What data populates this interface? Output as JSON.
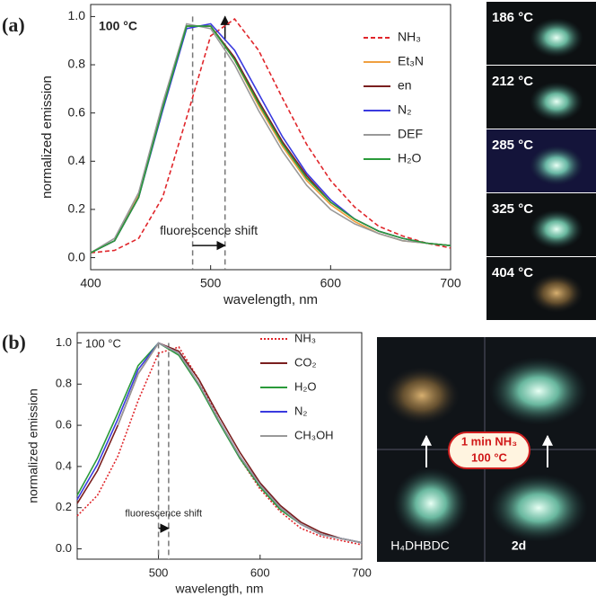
{
  "chart_data": [
    {
      "type": "line",
      "panel_label": "(a)",
      "annotation": "100 °C",
      "shift_label": "fluorescence shift",
      "x_label": "wavelength, nm",
      "y_label": "normalized emission",
      "xlim": [
        400,
        700
      ],
      "ylim": [
        -0.05,
        1.05
      ],
      "xticks": [
        400,
        500,
        600,
        700
      ],
      "yticks": [
        {
          "value": 0,
          "label": "0.0"
        },
        {
          "value": 0.2,
          "label": "0.2"
        },
        {
          "value": 0.4,
          "label": "0.4"
        },
        {
          "value": 0.6,
          "label": "0.6"
        },
        {
          "value": 0.8,
          "label": "0.8"
        },
        {
          "value": 1,
          "label": "1.0"
        }
      ],
      "reference_lines": [
        485,
        512
      ],
      "x": [
        400,
        420,
        440,
        460,
        480,
        500,
        520,
        540,
        560,
        580,
        600,
        620,
        640,
        660,
        680,
        700
      ],
      "series": [
        {
          "name": "NH₃",
          "color": "#e0262b",
          "line_style": "dashed",
          "values": [
            0.02,
            0.03,
            0.08,
            0.25,
            0.58,
            0.92,
            0.99,
            0.86,
            0.66,
            0.47,
            0.32,
            0.21,
            0.13,
            0.09,
            0.06,
            0.04
          ]
        },
        {
          "name": "Et₃N",
          "color": "#f0a040",
          "line_style": "solid",
          "values": [
            0.02,
            0.07,
            0.26,
            0.63,
            0.96,
            0.96,
            0.82,
            0.63,
            0.46,
            0.32,
            0.22,
            0.15,
            0.1,
            0.07,
            0.06,
            0.05
          ]
        },
        {
          "name": "en",
          "color": "#7a1f1f",
          "line_style": "solid",
          "values": [
            0.02,
            0.07,
            0.25,
            0.62,
            0.96,
            0.96,
            0.83,
            0.65,
            0.48,
            0.34,
            0.23,
            0.16,
            0.11,
            0.08,
            0.06,
            0.05
          ]
        },
        {
          "name": "N₂",
          "color": "#3a3adf",
          "line_style": "solid",
          "values": [
            0.02,
            0.07,
            0.25,
            0.61,
            0.95,
            0.97,
            0.86,
            0.68,
            0.5,
            0.35,
            0.24,
            0.16,
            0.11,
            0.08,
            0.06,
            0.05
          ]
        },
        {
          "name": "DEF",
          "color": "#999999",
          "line_style": "solid",
          "values": [
            0.02,
            0.08,
            0.27,
            0.64,
            0.97,
            0.95,
            0.8,
            0.61,
            0.44,
            0.3,
            0.2,
            0.14,
            0.1,
            0.07,
            0.06,
            0.05
          ]
        },
        {
          "name": "H₂O",
          "color": "#2a9a3a",
          "line_style": "solid",
          "values": [
            0.02,
            0.07,
            0.25,
            0.62,
            0.96,
            0.96,
            0.82,
            0.64,
            0.47,
            0.33,
            0.23,
            0.16,
            0.11,
            0.08,
            0.06,
            0.05
          ]
        }
      ]
    },
    {
      "type": "line",
      "panel_label": "(b)",
      "annotation": "100 °C",
      "shift_label": "fluorescence shift",
      "x_label": "wavelength, nm",
      "y_label": "normalized emission",
      "xlim": [
        420,
        700
      ],
      "ylim": [
        -0.05,
        1.05
      ],
      "xticks": [
        500,
        600,
        700
      ],
      "yticks": [
        {
          "value": 0,
          "label": "0.0"
        },
        {
          "value": 0.2,
          "label": "0.2"
        },
        {
          "value": 0.4,
          "label": "0.4"
        },
        {
          "value": 0.6,
          "label": "0.6"
        },
        {
          "value": 0.8,
          "label": "0.8"
        },
        {
          "value": 1,
          "label": "1.0"
        }
      ],
      "reference_lines": [
        500,
        510
      ],
      "x": [
        420,
        440,
        460,
        480,
        500,
        520,
        540,
        560,
        580,
        600,
        620,
        640,
        660,
        680,
        700
      ],
      "series": [
        {
          "name": "NH₃",
          "color": "#e0262b",
          "line_style": "dotted",
          "values": [
            0.16,
            0.26,
            0.45,
            0.72,
            0.95,
            0.98,
            0.82,
            0.62,
            0.44,
            0.29,
            0.18,
            0.1,
            0.06,
            0.04,
            0.02
          ]
        },
        {
          "name": "CO₂",
          "color": "#7a1f1f",
          "line_style": "solid",
          "values": [
            0.22,
            0.38,
            0.6,
            0.85,
            1.0,
            0.96,
            0.82,
            0.64,
            0.47,
            0.32,
            0.21,
            0.13,
            0.08,
            0.05,
            0.03
          ]
        },
        {
          "name": "H₂O",
          "color": "#2a9a3a",
          "line_style": "solid",
          "values": [
            0.26,
            0.44,
            0.66,
            0.89,
            1.0,
            0.94,
            0.79,
            0.61,
            0.44,
            0.3,
            0.19,
            0.12,
            0.07,
            0.05,
            0.03
          ]
        },
        {
          "name": "N₂",
          "color": "#3a3adf",
          "line_style": "solid",
          "values": [
            0.24,
            0.41,
            0.63,
            0.87,
            1.0,
            0.95,
            0.8,
            0.62,
            0.45,
            0.31,
            0.2,
            0.12,
            0.07,
            0.05,
            0.03
          ]
        },
        {
          "name": "CH₃OH",
          "color": "#999999",
          "line_style": "solid",
          "values": [
            null,
            null,
            0.6,
            0.85,
            1.0,
            0.95,
            0.8,
            0.62,
            0.45,
            0.31,
            0.2,
            0.12,
            0.07,
            0.05,
            0.03
          ]
        }
      ]
    }
  ],
  "photos": {
    "temperatures": [
      "186 °C",
      "212 °C",
      "285 °C",
      "325 °C",
      "404 °C"
    ],
    "treatment": [
      "1 min NH₃",
      "100 °C"
    ],
    "left_label": "H₄DHBDC",
    "right_label": "2d"
  }
}
